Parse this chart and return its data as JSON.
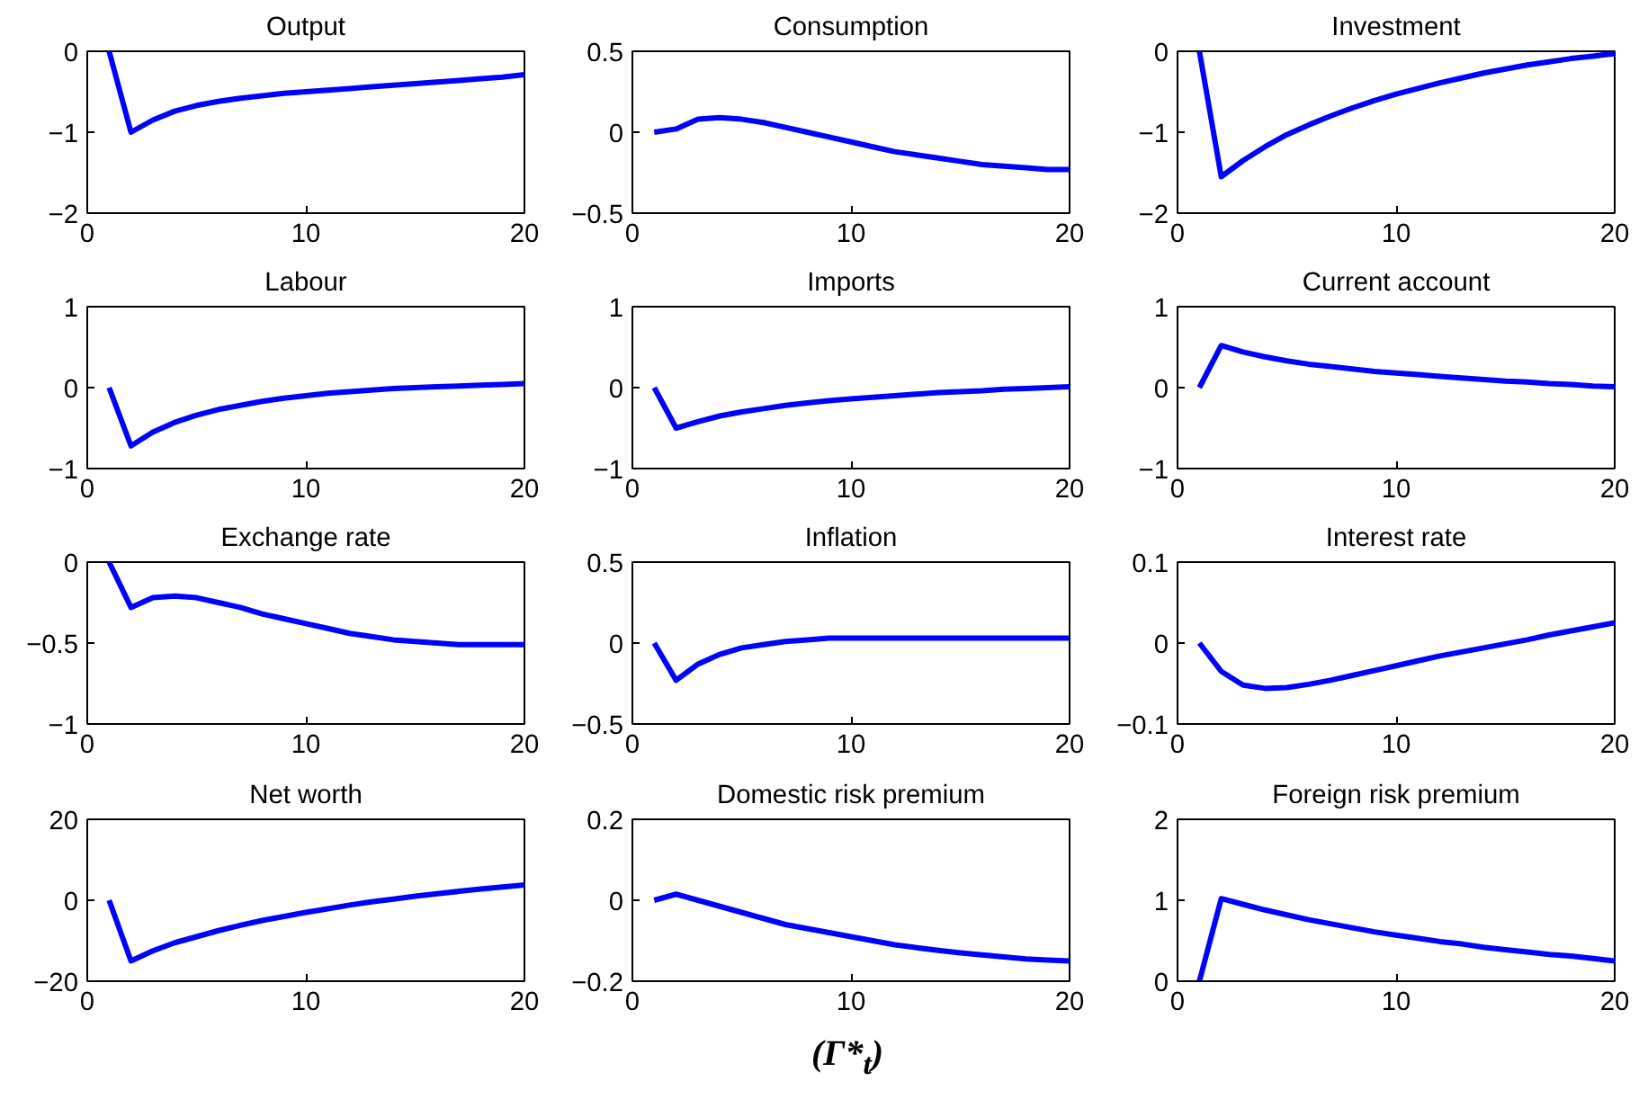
{
  "chart_data": [
    {
      "type": "line",
      "title": "Output",
      "x": [
        1,
        2,
        3,
        4,
        5,
        6,
        7,
        8,
        9,
        10,
        11,
        12,
        13,
        14,
        15,
        16,
        17,
        18,
        19,
        20
      ],
      "xlim": [
        0,
        20
      ],
      "xticks": [
        0,
        10,
        20
      ],
      "ylim": [
        -2,
        0
      ],
      "yticks": [
        -2,
        -1,
        0
      ],
      "series": [
        {
          "color": "#0000ff",
          "values": [
            0,
            -1.0,
            -0.85,
            -0.74,
            -0.67,
            -0.62,
            -0.58,
            -0.55,
            -0.52,
            -0.5,
            -0.48,
            -0.46,
            -0.44,
            -0.42,
            -0.4,
            -0.38,
            -0.36,
            -0.34,
            -0.32,
            -0.29
          ]
        }
      ]
    },
    {
      "type": "line",
      "title": "Consumption",
      "x": [
        1,
        2,
        3,
        4,
        5,
        6,
        7,
        8,
        9,
        10,
        11,
        12,
        13,
        14,
        15,
        16,
        17,
        18,
        19,
        20
      ],
      "xlim": [
        0,
        20
      ],
      "xticks": [
        0,
        10,
        20
      ],
      "ylim": [
        -0.5,
        0.5
      ],
      "yticks": [
        -0.5,
        0,
        0.5
      ],
      "series": [
        {
          "color": "#0000ff",
          "values": [
            0,
            0.02,
            0.08,
            0.09,
            0.08,
            0.06,
            0.03,
            0.0,
            -0.03,
            -0.06,
            -0.09,
            -0.12,
            -0.14,
            -0.16,
            -0.18,
            -0.2,
            -0.21,
            -0.22,
            -0.23,
            -0.23
          ]
        }
      ]
    },
    {
      "type": "line",
      "title": "Investment",
      "x": [
        1,
        2,
        3,
        4,
        5,
        6,
        7,
        8,
        9,
        10,
        11,
        12,
        13,
        14,
        15,
        16,
        17,
        18,
        19,
        20
      ],
      "xlim": [
        0,
        20
      ],
      "xticks": [
        0,
        10,
        20
      ],
      "ylim": [
        -2,
        0
      ],
      "yticks": [
        -2,
        -1,
        0
      ],
      "series": [
        {
          "color": "#0000ff",
          "values": [
            0,
            -1.55,
            -1.35,
            -1.18,
            -1.03,
            -0.91,
            -0.8,
            -0.7,
            -0.61,
            -0.53,
            -0.46,
            -0.39,
            -0.33,
            -0.27,
            -0.22,
            -0.17,
            -0.13,
            -0.09,
            -0.06,
            -0.03
          ]
        }
      ]
    },
    {
      "type": "line",
      "title": "Labour",
      "x": [
        1,
        2,
        3,
        4,
        5,
        6,
        7,
        8,
        9,
        10,
        11,
        12,
        13,
        14,
        15,
        16,
        17,
        18,
        19,
        20
      ],
      "xlim": [
        0,
        20
      ],
      "xticks": [
        0,
        10,
        20
      ],
      "ylim": [
        -1,
        1
      ],
      "yticks": [
        -1,
        0,
        1
      ],
      "series": [
        {
          "color": "#0000ff",
          "values": [
            0,
            -0.72,
            -0.55,
            -0.43,
            -0.34,
            -0.27,
            -0.22,
            -0.17,
            -0.13,
            -0.1,
            -0.07,
            -0.05,
            -0.03,
            -0.01,
            0.0,
            0.01,
            0.02,
            0.03,
            0.04,
            0.05
          ]
        }
      ]
    },
    {
      "type": "line",
      "title": "Imports",
      "x": [
        1,
        2,
        3,
        4,
        5,
        6,
        7,
        8,
        9,
        10,
        11,
        12,
        13,
        14,
        15,
        16,
        17,
        18,
        19,
        20
      ],
      "xlim": [
        0,
        20
      ],
      "xticks": [
        0,
        10,
        20
      ],
      "ylim": [
        -1,
        1
      ],
      "yticks": [
        -1,
        0,
        1
      ],
      "series": [
        {
          "color": "#0000ff",
          "values": [
            0,
            -0.5,
            -0.42,
            -0.35,
            -0.3,
            -0.26,
            -0.22,
            -0.19,
            -0.16,
            -0.14,
            -0.12,
            -0.1,
            -0.08,
            -0.06,
            -0.05,
            -0.04,
            -0.02,
            -0.01,
            0.0,
            0.01
          ]
        }
      ]
    },
    {
      "type": "line",
      "title": "Current account",
      "x": [
        1,
        2,
        3,
        4,
        5,
        6,
        7,
        8,
        9,
        10,
        11,
        12,
        13,
        14,
        15,
        16,
        17,
        18,
        19,
        20
      ],
      "xlim": [
        0,
        20
      ],
      "xticks": [
        0,
        10,
        20
      ],
      "ylim": [
        -1,
        1
      ],
      "yticks": [
        -1,
        0,
        1
      ],
      "series": [
        {
          "color": "#0000ff",
          "values": [
            0,
            0.52,
            0.44,
            0.38,
            0.33,
            0.29,
            0.26,
            0.23,
            0.2,
            0.18,
            0.16,
            0.14,
            0.12,
            0.1,
            0.08,
            0.07,
            0.05,
            0.04,
            0.02,
            0.01
          ]
        }
      ]
    },
    {
      "type": "line",
      "title": "Exchange rate",
      "x": [
        1,
        2,
        3,
        4,
        5,
        6,
        7,
        8,
        9,
        10,
        11,
        12,
        13,
        14,
        15,
        16,
        17,
        18,
        19,
        20
      ],
      "xlim": [
        0,
        20
      ],
      "xticks": [
        0,
        10,
        20
      ],
      "ylim": [
        -1,
        0
      ],
      "yticks": [
        -1,
        -0.5,
        0
      ],
      "series": [
        {
          "color": "#0000ff",
          "values": [
            0,
            -0.28,
            -0.22,
            -0.21,
            -0.22,
            -0.25,
            -0.28,
            -0.32,
            -0.35,
            -0.38,
            -0.41,
            -0.44,
            -0.46,
            -0.48,
            -0.49,
            -0.5,
            -0.51,
            -0.51,
            -0.51,
            -0.51
          ]
        }
      ]
    },
    {
      "type": "line",
      "title": "Inflation",
      "x": [
        1,
        2,
        3,
        4,
        5,
        6,
        7,
        8,
        9,
        10,
        11,
        12,
        13,
        14,
        15,
        16,
        17,
        18,
        19,
        20
      ],
      "xlim": [
        0,
        20
      ],
      "xticks": [
        0,
        10,
        20
      ],
      "ylim": [
        -0.5,
        0.5
      ],
      "yticks": [
        -0.5,
        0,
        0.5
      ],
      "series": [
        {
          "color": "#0000ff",
          "values": [
            0,
            -0.23,
            -0.13,
            -0.07,
            -0.03,
            -0.01,
            0.01,
            0.02,
            0.03,
            0.03,
            0.03,
            0.03,
            0.03,
            0.03,
            0.03,
            0.03,
            0.03,
            0.03,
            0.03,
            0.03
          ]
        }
      ]
    },
    {
      "type": "line",
      "title": "Interest rate",
      "x": [
        1,
        2,
        3,
        4,
        5,
        6,
        7,
        8,
        9,
        10,
        11,
        12,
        13,
        14,
        15,
        16,
        17,
        18,
        19,
        20
      ],
      "xlim": [
        0,
        20
      ],
      "xticks": [
        0,
        10,
        20
      ],
      "ylim": [
        -0.1,
        0.1
      ],
      "yticks": [
        -0.1,
        0,
        0.1
      ],
      "series": [
        {
          "color": "#0000ff",
          "values": [
            0,
            -0.035,
            -0.052,
            -0.056,
            -0.055,
            -0.051,
            -0.046,
            -0.04,
            -0.034,
            -0.028,
            -0.022,
            -0.016,
            -0.011,
            -0.006,
            -0.001,
            0.004,
            0.01,
            0.015,
            0.02,
            0.025
          ]
        }
      ]
    },
    {
      "type": "line",
      "title": "Net worth",
      "x": [
        1,
        2,
        3,
        4,
        5,
        6,
        7,
        8,
        9,
        10,
        11,
        12,
        13,
        14,
        15,
        16,
        17,
        18,
        19,
        20
      ],
      "xlim": [
        0,
        20
      ],
      "xticks": [
        0,
        10,
        20
      ],
      "ylim": [
        -20,
        20
      ],
      "yticks": [
        -20,
        0,
        20
      ],
      "series": [
        {
          "color": "#0000ff",
          "values": [
            0,
            -15,
            -12.5,
            -10.5,
            -9,
            -7.5,
            -6.2,
            -5,
            -4,
            -3,
            -2.1,
            -1.2,
            -0.4,
            0.3,
            1,
            1.6,
            2.2,
            2.8,
            3.3,
            3.8
          ]
        }
      ]
    },
    {
      "type": "line",
      "title": "Domestic risk premium",
      "xlabel": "(Γ*$_{t}$)",
      "x": [
        1,
        2,
        3,
        4,
        5,
        6,
        7,
        8,
        9,
        10,
        11,
        12,
        13,
        14,
        15,
        16,
        17,
        18,
        19,
        20
      ],
      "xlim": [
        0,
        20
      ],
      "xticks": [
        0,
        10,
        20
      ],
      "ylim": [
        -0.2,
        0.2
      ],
      "yticks": [
        -0.2,
        0,
        0.2
      ],
      "series": [
        {
          "color": "#0000ff",
          "values": [
            0,
            0.015,
            0.0,
            -0.015,
            -0.03,
            -0.045,
            -0.06,
            -0.07,
            -0.08,
            -0.09,
            -0.1,
            -0.11,
            -0.117,
            -0.124,
            -0.13,
            -0.135,
            -0.14,
            -0.145,
            -0.148,
            -0.15
          ]
        }
      ]
    },
    {
      "type": "line",
      "title": "Foreign risk premium",
      "x": [
        1,
        2,
        3,
        4,
        5,
        6,
        7,
        8,
        9,
        10,
        11,
        12,
        13,
        14,
        15,
        16,
        17,
        18,
        19,
        20
      ],
      "xlim": [
        0,
        20
      ],
      "xticks": [
        0,
        10,
        20
      ],
      "ylim": [
        0,
        2
      ],
      "yticks": [
        0,
        1,
        2
      ],
      "series": [
        {
          "color": "#0000ff",
          "values": [
            0,
            1.02,
            0.95,
            0.88,
            0.82,
            0.76,
            0.71,
            0.66,
            0.61,
            0.57,
            0.53,
            0.49,
            0.46,
            0.42,
            0.39,
            0.36,
            0.33,
            0.31,
            0.28,
            0.25
          ]
        }
      ]
    }
  ]
}
